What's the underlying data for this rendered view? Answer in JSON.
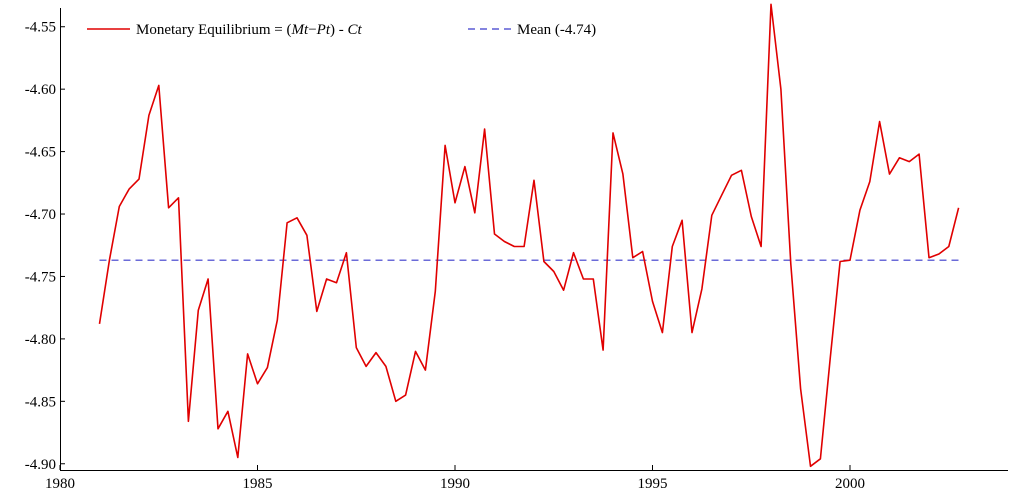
{
  "chart_data": {
    "type": "line",
    "title": "",
    "xlabel": "",
    "ylabel": "",
    "xlim": [
      1980,
      2004
    ],
    "ylim": [
      -4.905,
      -4.535
    ],
    "x_ticks": [
      1980,
      1985,
      1990,
      1995,
      2000
    ],
    "y_ticks": [
      -4.55,
      -4.6,
      -4.65,
      -4.7,
      -4.75,
      -4.8,
      -4.85,
      -4.9
    ],
    "x_tick_labels": [
      "1980",
      "1985",
      "1990",
      "1995",
      "2000"
    ],
    "y_tick_labels": [
      "-4.55",
      "-4.60",
      "-4.65",
      "-4.70",
      "-4.75",
      "-4.80",
      "-4.85",
      "-4.90"
    ],
    "grid": false,
    "legend_position": "top-left",
    "legend": {
      "series1_prefix": "Monetary Equilibrium = (",
      "series1_mt": "Mt",
      "series1_minus": "−",
      "series1_pt": "Pt",
      "series1_mid": ") - ",
      "series1_ct": "Ct",
      "mean_label": "Mean (-4.74)"
    },
    "series": [
      {
        "name": "Monetary Equilibrium = (Mt−Pt) - Ct",
        "color": "#e00000",
        "style": "solid",
        "x": [
          1981.0,
          1981.25,
          1981.5,
          1981.75,
          1982.0,
          1982.25,
          1982.5,
          1982.75,
          1983.0,
          1983.25,
          1983.5,
          1983.75,
          1984.0,
          1984.25,
          1984.5,
          1984.75,
          1985.0,
          1985.25,
          1985.5,
          1985.75,
          1986.0,
          1986.25,
          1986.5,
          1986.75,
          1987.0,
          1987.25,
          1987.5,
          1987.75,
          1988.0,
          1988.25,
          1988.5,
          1988.75,
          1989.0,
          1989.25,
          1989.5,
          1989.75,
          1990.0,
          1990.25,
          1990.5,
          1990.75,
          1991.0,
          1991.25,
          1991.5,
          1991.75,
          1992.0,
          1992.25,
          1992.5,
          1992.75,
          1993.0,
          1993.25,
          1993.5,
          1993.75,
          1994.0,
          1994.25,
          1994.5,
          1994.75,
          1995.0,
          1995.25,
          1995.5,
          1995.75,
          1996.0,
          1996.25,
          1996.5,
          1996.75,
          1997.0,
          1997.25,
          1997.5,
          1997.75,
          1998.0,
          1998.25,
          1998.5,
          1998.75,
          1999.0,
          1999.25,
          1999.5,
          1999.75,
          2000.0,
          2000.25,
          2000.5,
          2000.75,
          2001.0,
          2001.25,
          2001.5,
          2001.75,
          2002.0,
          2002.25,
          2002.5,
          2002.75
        ],
        "values": [
          -4.788,
          -4.737,
          -4.694,
          -4.68,
          -4.672,
          -4.621,
          -4.597,
          -4.695,
          -4.687,
          -4.866,
          -4.777,
          -4.752,
          -4.872,
          -4.858,
          -4.895,
          -4.812,
          -4.836,
          -4.823,
          -4.785,
          -4.707,
          -4.703,
          -4.717,
          -4.778,
          -4.752,
          -4.755,
          -4.731,
          -4.807,
          -4.822,
          -4.811,
          -4.822,
          -4.85,
          -4.845,
          -4.81,
          -4.825,
          -4.762,
          -4.645,
          -4.691,
          -4.662,
          -4.699,
          -4.632,
          -4.716,
          -4.722,
          -4.726,
          -4.726,
          -4.673,
          -4.738,
          -4.746,
          -4.761,
          -4.731,
          -4.752,
          -4.752,
          -4.809,
          -4.635,
          -4.668,
          -4.735,
          -4.73,
          -4.77,
          -4.795,
          -4.726,
          -4.705,
          -4.795,
          -4.76,
          -4.701,
          -4.685,
          -4.669,
          -4.665,
          -4.702,
          -4.726,
          -4.532,
          -4.6,
          -4.74,
          -4.84,
          -4.902,
          -4.896,
          -4.815,
          -4.738,
          -4.737,
          -4.697,
          -4.674,
          -4.626,
          -4.668,
          -4.655,
          -4.658,
          -4.652,
          -4.735,
          -4.732,
          -4.726,
          -4.695
        ]
      },
      {
        "name": "Mean (-4.74)",
        "color": "#3a3acc",
        "style": "dashed",
        "x": [
          1981.0,
          2002.75
        ],
        "values": [
          -4.737,
          -4.737
        ]
      }
    ]
  }
}
